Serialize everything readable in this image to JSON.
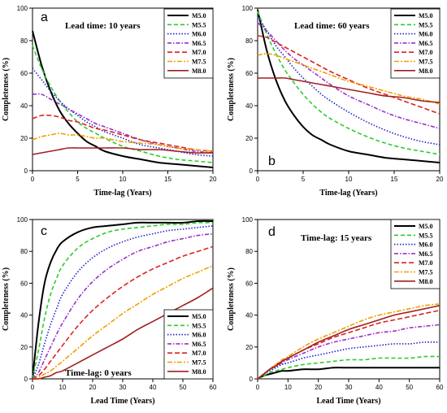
{
  "series_styles": [
    {
      "name": "M5.0",
      "color": "#000000",
      "dash": "",
      "width": 2
    },
    {
      "name": "M5.5",
      "color": "#2ecc2e",
      "dash": "5,3",
      "width": 1.6
    },
    {
      "name": "M6.0",
      "color": "#2222cc",
      "dash": "1.5,2",
      "width": 1.6
    },
    {
      "name": "M6.5",
      "color": "#9b30c9",
      "dash": "5,2,1.5,2",
      "width": 1.6
    },
    {
      "name": "M7.0",
      "color": "#dd2222",
      "dash": "6,3",
      "width": 1.6
    },
    {
      "name": "M7.5",
      "color": "#f0a000",
      "dash": "6,2,2,2",
      "width": 1.6
    },
    {
      "name": "M8.0",
      "color": "#a02020",
      "dash": "",
      "width": 1.6
    }
  ],
  "chart_data": [
    {
      "panel": "a",
      "type": "line",
      "annotation": "Lead time: 10 years",
      "xlabel": "Time-lag (Years)",
      "ylabel": "Completeness (%)",
      "xlim": [
        0,
        20
      ],
      "ylim": [
        0,
        100
      ],
      "xticks": [
        0,
        5,
        10,
        15,
        20
      ],
      "yticks": [
        0,
        20,
        40,
        60,
        80,
        100
      ],
      "legend": "top-right",
      "x": [
        0,
        1,
        2,
        3,
        4,
        5,
        6,
        7,
        8,
        10,
        12,
        14,
        16,
        18,
        20
      ],
      "series": [
        {
          "name": "M5.0",
          "values": [
            86,
            65,
            49,
            37,
            29,
            23,
            18,
            15,
            12,
            9,
            7,
            5,
            4,
            3,
            2
          ]
        },
        {
          "name": "M5.5",
          "values": [
            77,
            63,
            52,
            43,
            36,
            30,
            26,
            23,
            20,
            15,
            12,
            9,
            7,
            6,
            5
          ]
        },
        {
          "name": "M6.0",
          "values": [
            63,
            56,
            49,
            43,
            38,
            34,
            30,
            27,
            24,
            20,
            16,
            14,
            12,
            10,
            9
          ]
        },
        {
          "name": "M6.5",
          "values": [
            47,
            47,
            44,
            41,
            38,
            35,
            32,
            29,
            27,
            23,
            19,
            16,
            14,
            12,
            11
          ]
        },
        {
          "name": "M7.0",
          "values": [
            32,
            34,
            34,
            33,
            31,
            30,
            28,
            26,
            25,
            22,
            19,
            17,
            15,
            13,
            12
          ]
        },
        {
          "name": "M7.5",
          "values": [
            19,
            21,
            22,
            23,
            22,
            22,
            21,
            20,
            20,
            18,
            17,
            16,
            14,
            13,
            12
          ]
        },
        {
          "name": "M8.0",
          "values": [
            10,
            11,
            12,
            13,
            14,
            14,
            14,
            14,
            14,
            14,
            13,
            13,
            12,
            11,
            11
          ]
        }
      ]
    },
    {
      "panel": "b",
      "type": "line",
      "annotation": "Lead time: 60 years",
      "xlabel": "Time-lag (Years)",
      "ylabel": "Completeness (%)",
      "xlim": [
        0,
        20
      ],
      "ylim": [
        0,
        100
      ],
      "xticks": [
        0,
        5,
        10,
        15,
        20
      ],
      "yticks": [
        0,
        20,
        40,
        60,
        80,
        100
      ],
      "legend": "top-right",
      "x": [
        0,
        1,
        2,
        3,
        4,
        5,
        6,
        7,
        8,
        10,
        12,
        14,
        16,
        18,
        20
      ],
      "series": [
        {
          "name": "M5.0",
          "values": [
            99,
            74,
            56,
            43,
            34,
            27,
            22,
            19,
            16,
            12,
            10,
            8,
            7,
            6,
            5
          ]
        },
        {
          "name": "M5.5",
          "values": [
            98,
            84,
            72,
            62,
            54,
            47,
            41,
            36,
            32,
            26,
            21,
            17,
            14,
            12,
            10
          ]
        },
        {
          "name": "M6.0",
          "values": [
            95,
            86,
            77,
            70,
            63,
            57,
            52,
            47,
            43,
            36,
            30,
            25,
            21,
            18,
            16
          ]
        },
        {
          "name": "M6.5",
          "values": [
            91,
            86,
            80,
            74,
            69,
            65,
            61,
            57,
            53,
            46,
            41,
            36,
            32,
            29,
            26
          ]
        },
        {
          "name": "M7.0",
          "values": [
            83,
            82,
            79,
            76,
            73,
            70,
            67,
            64,
            61,
            56,
            51,
            47,
            43,
            39,
            35
          ]
        },
        {
          "name": "M7.5",
          "values": [
            71,
            72,
            71,
            69,
            67,
            65,
            63,
            61,
            59,
            55,
            52,
            49,
            46,
            44,
            41
          ]
        },
        {
          "name": "M8.0",
          "values": [
            57,
            57,
            57,
            57,
            56,
            55,
            54,
            53,
            52,
            50,
            48,
            46,
            45,
            43,
            42
          ]
        }
      ]
    },
    {
      "panel": "c",
      "type": "line",
      "annotation": "Time-lag: 0 years",
      "xlabel": "Lead Time  (Years)",
      "ylabel": "Completeness (%)",
      "xlim": [
        0,
        60
      ],
      "ylim": [
        0,
        100
      ],
      "xticks": [
        0,
        10,
        20,
        30,
        40,
        50,
        60
      ],
      "yticks": [
        0,
        20,
        40,
        60,
        80,
        100
      ],
      "legend": "bottom-right",
      "x": [
        0,
        2,
        4,
        6,
        8,
        10,
        15,
        20,
        25,
        30,
        35,
        40,
        45,
        50,
        55,
        60
      ],
      "series": [
        {
          "name": "M5.0",
          "values": [
            0,
            35,
            60,
            73,
            81,
            86,
            92,
            95,
            96,
            97,
            98,
            98,
            98,
            98,
            99,
            99
          ]
        },
        {
          "name": "M5.5",
          "values": [
            0,
            18,
            38,
            53,
            63,
            71,
            82,
            88,
            92,
            94,
            95,
            96,
            97,
            97,
            98,
            98
          ]
        },
        {
          "name": "M6.0",
          "values": [
            0,
            9,
            22,
            34,
            44,
            53,
            67,
            76,
            82,
            86,
            89,
            91,
            93,
            94,
            95,
            96
          ]
        },
        {
          "name": "M6.5",
          "values": [
            0,
            4,
            12,
            20,
            28,
            35,
            50,
            61,
            69,
            75,
            80,
            83,
            86,
            88,
            90,
            91
          ]
        },
        {
          "name": "M7.0",
          "values": [
            0,
            2,
            6,
            11,
            16,
            21,
            33,
            43,
            51,
            58,
            64,
            69,
            73,
            77,
            80,
            83
          ]
        },
        {
          "name": "M7.5",
          "values": [
            0,
            1,
            3,
            5,
            8,
            11,
            19,
            27,
            34,
            41,
            47,
            53,
            58,
            63,
            67,
            71
          ]
        },
        {
          "name": "M8.0",
          "values": [
            0,
            0,
            1,
            2,
            4,
            5,
            10,
            15,
            20,
            25,
            31,
            36,
            41,
            46,
            51,
            57
          ]
        }
      ]
    },
    {
      "panel": "d",
      "type": "line",
      "annotation": "Time-lag: 15 years",
      "xlabel": "Lead Time  (Years)",
      "ylabel": "Completeness (%)",
      "xlim": [
        0,
        60
      ],
      "ylim": [
        0,
        100
      ],
      "xticks": [
        0,
        10,
        20,
        30,
        40,
        50,
        60
      ],
      "yticks": [
        0,
        20,
        40,
        60,
        80,
        100
      ],
      "legend": "top-right",
      "x": [
        0,
        2,
        4,
        6,
        8,
        10,
        15,
        20,
        25,
        30,
        35,
        40,
        45,
        50,
        55,
        60
      ],
      "series": [
        {
          "name": "M5.0",
          "values": [
            0,
            2,
            3,
            4,
            5,
            5,
            6,
            6,
            7,
            7,
            7,
            7,
            7,
            7,
            7,
            7
          ]
        },
        {
          "name": "M5.5",
          "values": [
            0,
            2,
            4,
            5,
            6,
            7,
            9,
            10,
            11,
            12,
            12,
            13,
            13,
            13,
            14,
            14
          ]
        },
        {
          "name": "M6.0",
          "values": [
            0,
            3,
            5,
            7,
            9,
            10,
            13,
            15,
            17,
            19,
            20,
            21,
            22,
            22,
            23,
            23
          ]
        },
        {
          "name": "M6.5",
          "values": [
            0,
            3,
            6,
            8,
            10,
            12,
            16,
            20,
            23,
            25,
            27,
            29,
            30,
            32,
            33,
            34
          ]
        },
        {
          "name": "M7.0",
          "values": [
            0,
            3,
            6,
            9,
            11,
            13,
            18,
            22,
            26,
            29,
            32,
            35,
            37,
            39,
            41,
            43
          ]
        },
        {
          "name": "M7.5",
          "values": [
            0,
            3,
            6,
            9,
            12,
            14,
            20,
            25,
            29,
            33,
            37,
            40,
            42,
            44,
            46,
            47
          ]
        },
        {
          "name": "M8.0",
          "values": [
            0,
            3,
            6,
            8,
            11,
            13,
            18,
            23,
            27,
            31,
            34,
            37,
            40,
            42,
            44,
            46
          ]
        }
      ]
    }
  ]
}
